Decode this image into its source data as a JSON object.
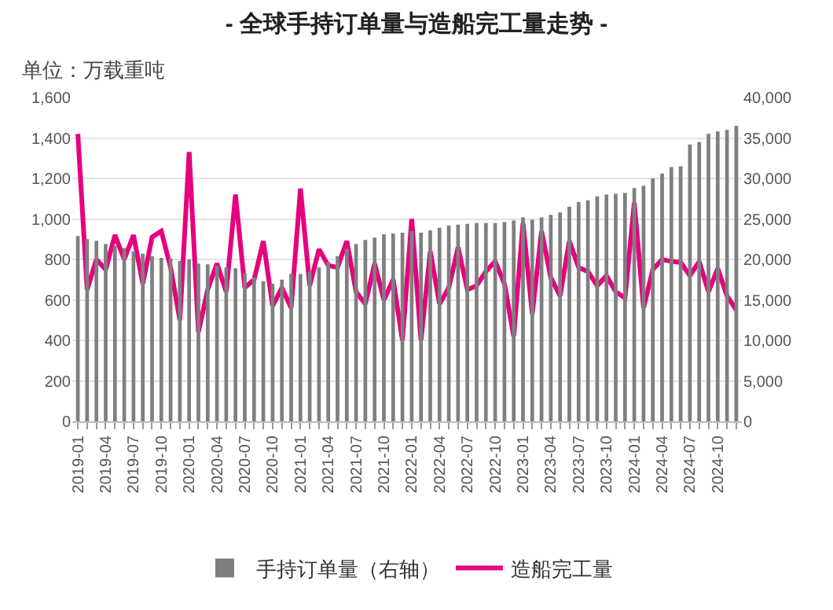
{
  "chart_data": {
    "type": "bar",
    "title": "- 全球手持订单量与造船完工量走势 -",
    "ylabel": "单位：万载重吨",
    "categories": [
      "2019-01",
      null,
      null,
      "2019-04",
      null,
      null,
      "2019-07",
      null,
      null,
      "2019-10",
      null,
      null,
      "2020-01",
      null,
      null,
      "2020-04",
      null,
      null,
      "2020-07",
      null,
      null,
      "2020-10",
      null,
      null,
      "2021-01",
      null,
      null,
      "2021-04",
      null,
      null,
      "2021-07",
      null,
      null,
      "2021-10",
      null,
      null,
      "2022-01",
      null,
      null,
      "2022-04",
      null,
      null,
      "2022-07",
      null,
      null,
      "2022-10",
      null,
      null,
      "2023-01",
      null,
      null,
      "2023-04",
      null,
      null,
      "2023-07",
      null,
      null,
      "2023-10",
      null,
      null,
      "2024-01",
      null,
      null,
      "2024-04",
      null,
      null,
      "2024-07",
      null,
      null,
      "2024-10",
      null,
      null
    ],
    "series": [
      {
        "name": "手持订单量（右轴）",
        "axis": "y2",
        "color": "#7f7f7f",
        "values": [
          22900,
          22500,
          22300,
          21900,
          21700,
          21400,
          21000,
          20700,
          20400,
          20200,
          20100,
          19800,
          20000,
          19500,
          19400,
          19200,
          19000,
          18900,
          18300,
          17800,
          17300,
          17000,
          17500,
          18200,
          18200,
          18500,
          19000,
          19700,
          20400,
          21300,
          21900,
          22400,
          22700,
          23100,
          23200,
          23300,
          23500,
          23300,
          23600,
          23900,
          24200,
          24300,
          24400,
          24500,
          24500,
          24500,
          24600,
          24800,
          25200,
          24900,
          25200,
          25500,
          25800,
          26500,
          27100,
          27300,
          27800,
          28000,
          28100,
          28200,
          28800,
          29100,
          30000,
          30600,
          31400,
          31500,
          34200,
          34500,
          35500,
          35800,
          36000,
          36500
        ]
      },
      {
        "name": "造船完工量",
        "type": "line",
        "axis": "y",
        "color": "#e6007e",
        "values": [
          1420,
          650,
          800,
          750,
          920,
          800,
          920,
          680,
          910,
          940,
          760,
          500,
          1330,
          440,
          650,
          780,
          640,
          1120,
          660,
          700,
          890,
          570,
          660,
          560,
          1150,
          670,
          850,
          770,
          760,
          890,
          640,
          580,
          780,
          600,
          700,
          400,
          1000,
          400,
          840,
          580,
          660,
          860,
          650,
          670,
          740,
          790,
          680,
          420,
          980,
          530,
          940,
          710,
          620,
          890,
          760,
          740,
          670,
          720,
          640,
          610,
          1080,
          560,
          750,
          800,
          790,
          785,
          720,
          790,
          640,
          755,
          620,
          550
        ]
      }
    ],
    "ylim": [
      0,
      1600
    ],
    "yticks": [
      0,
      200,
      400,
      600,
      800,
      {
        "value": 1000,
        "label": "1,000"
      },
      {
        "value": 1200,
        "label": "1,200"
      },
      {
        "value": 1400,
        "label": "1,400"
      },
      {
        "value": 1600,
        "label": "1,600"
      }
    ],
    "y2lim": [
      0,
      40000
    ],
    "y2ticks": [
      0,
      {
        "value": 5000,
        "label": "5,000"
      },
      {
        "value": 10000,
        "label": "10,000"
      },
      {
        "value": 15000,
        "label": "15,000"
      },
      {
        "value": 20000,
        "label": "20,000"
      },
      {
        "value": 25000,
        "label": "25,000"
      },
      {
        "value": 30000,
        "label": "30,000"
      },
      {
        "value": 35000,
        "label": "35,000"
      },
      {
        "value": 40000,
        "label": "40,000"
      }
    ],
    "grid": "y",
    "legend": "bottom",
    "marker": "none",
    "line_style": "solid"
  }
}
